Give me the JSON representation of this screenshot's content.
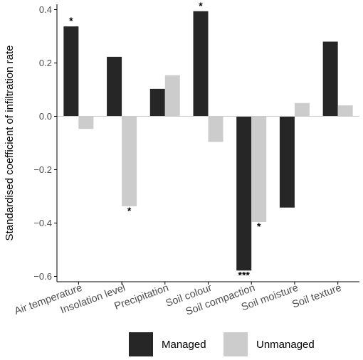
{
  "chart_data": {
    "type": "bar",
    "categories": [
      "Air temperature",
      "Insolation level",
      "Precipitation",
      "Soil colour",
      "Soil compaction",
      "Soil moisture",
      "Soil texture"
    ],
    "series": [
      {
        "name": "Managed",
        "color": "#262626",
        "values": [
          0.337,
          0.223,
          0.103,
          0.394,
          -0.578,
          -0.342,
          0.28
        ],
        "significance": [
          "*",
          "",
          "",
          "*",
          "***",
          "",
          ""
        ]
      },
      {
        "name": "Unmanaged",
        "color": "#cccccc",
        "values": [
          -0.047,
          -0.337,
          0.154,
          -0.096,
          -0.396,
          0.05,
          0.041
        ],
        "significance": [
          "",
          "*",
          "",
          "",
          "*",
          "",
          ""
        ]
      }
    ],
    "ylabel": "Standardised coefficient of infiltration rate",
    "xlabel": "",
    "ylim": [
      -0.62,
      0.42
    ],
    "yticks": [
      0.4,
      0.2,
      0.0,
      -0.2,
      -0.4,
      -0.6
    ],
    "ytick_labels": [
      "0.4",
      "0.2",
      "0.0",
      "−0.2",
      "−0.4",
      "−0.6"
    ],
    "grid": false,
    "legend_position": "bottom"
  }
}
